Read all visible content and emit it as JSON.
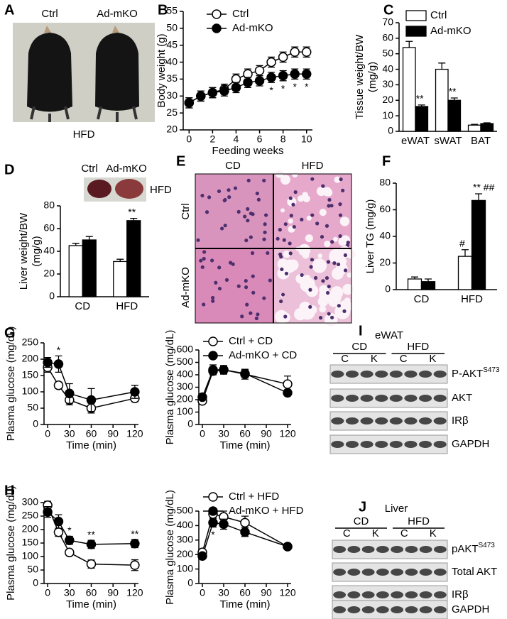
{
  "panels": {
    "A": {
      "label": "A",
      "ctrl": "Ctrl",
      "ko": "Ad-mKO",
      "diet": "HFD"
    },
    "D_inset": {
      "ctrl": "Ctrl",
      "ko": "Ad-mKO",
      "diet": "HFD"
    },
    "E": {
      "label": "E",
      "columns": [
        "CD",
        "HFD"
      ],
      "rows": [
        "Ctrl",
        "Ad-mKO"
      ]
    },
    "blots": [
      {
        "label": "I",
        "title": "eWAT",
        "groups": [
          "CD",
          "HFD"
        ],
        "lanes": [
          "C",
          "K",
          "C",
          "K"
        ],
        "rows": [
          {
            "text": "P-AKT",
            "sup": "S473"
          },
          {
            "text": "AKT"
          },
          {
            "text": "IRβ"
          },
          {
            "text": "GAPDH"
          }
        ]
      },
      {
        "label": "J",
        "title": "Liver",
        "groups": [
          "CD",
          "HFD"
        ],
        "lanes": [
          "C",
          "K",
          "C",
          "K"
        ],
        "rows": [
          {
            "text": "pAKT",
            "sup": "S473"
          },
          {
            "text": "Total AKT"
          },
          {
            "text": "IRβ"
          },
          {
            "text": "GAPDH"
          }
        ]
      }
    ]
  },
  "chart_data": [
    {
      "type": "line",
      "label": "B",
      "ylabel": "Body weight (g)",
      "xlabel": "Feeding weeks",
      "x": [
        0,
        1,
        2,
        3,
        4,
        5,
        6,
        7,
        8,
        9,
        10
      ],
      "xlim": [
        -0.5,
        10.5
      ],
      "xticks": [
        0,
        2,
        4,
        6,
        8,
        10
      ],
      "ylim": [
        20,
        55
      ],
      "yticks": [
        20,
        25,
        30,
        35,
        40,
        45,
        50,
        55
      ],
      "series": [
        {
          "name": "Ctrl",
          "color": "#ffffff",
          "values": [
            28,
            30,
            31,
            32,
            35,
            36.5,
            37.5,
            40,
            41.5,
            43,
            43
          ],
          "errors": [
            1.5,
            1.5,
            1.5,
            1.5,
            1.5,
            1.5,
            1.5,
            1.5,
            1.5,
            1.5,
            1.5
          ]
        },
        {
          "name": "Ad-mKO",
          "color": "#000000",
          "values": [
            28,
            30,
            31,
            31.5,
            32.5,
            34,
            34.5,
            35.5,
            36,
            36.5,
            36.5
          ],
          "errors": [
            1.5,
            1.5,
            1.5,
            1.5,
            1.5,
            1.5,
            1.5,
            1.5,
            1.5,
            1.5,
            1.5
          ],
          "annotations": [
            null,
            null,
            null,
            null,
            null,
            null,
            null,
            "*",
            "*",
            "*",
            "*"
          ]
        }
      ]
    },
    {
      "type": "bar",
      "label": "C",
      "ylabel": [
        "Tissue weight/BW",
        "(mg/g)"
      ],
      "categories": [
        "eWAT",
        "sWAT",
        "BAT"
      ],
      "ylim": [
        0,
        70
      ],
      "yticks": [
        0,
        10,
        20,
        30,
        40,
        50,
        60,
        70
      ],
      "series": [
        {
          "name": "Ctrl",
          "color": "#ffffff",
          "values": [
            54,
            40,
            4
          ],
          "errors": [
            4,
            4,
            0.5
          ]
        },
        {
          "name": "Ad-mKO",
          "color": "#000000",
          "values": [
            16,
            20,
            5
          ],
          "errors": [
            1,
            1.5,
            0.5
          ],
          "annotations": [
            "**",
            "**",
            null
          ]
        }
      ]
    },
    {
      "type": "bar",
      "label": "D",
      "ylabel": [
        "Liver weight/BW",
        "(mg/g)"
      ],
      "categories": [
        "CD",
        "HFD"
      ],
      "ylim": [
        0,
        80
      ],
      "yticks": [
        0,
        20,
        40,
        60,
        80
      ],
      "series": [
        {
          "color": "#ffffff",
          "values": [
            45,
            31
          ],
          "errors": [
            2,
            2
          ]
        },
        {
          "color": "#000000",
          "values": [
            50,
            67
          ],
          "errors": [
            3,
            2
          ],
          "annotations": [
            null,
            "**"
          ]
        }
      ]
    },
    {
      "type": "bar",
      "label": "F",
      "ylabel": "Liver TG (mg/g)",
      "categories": [
        "CD",
        "HFD"
      ],
      "ylim": [
        0,
        80
      ],
      "yticks": [
        0,
        20,
        40,
        60,
        80
      ],
      "series": [
        {
          "color": "#ffffff",
          "values": [
            8,
            25
          ],
          "errors": [
            1.5,
            5
          ],
          "annotations": [
            null,
            "#"
          ]
        },
        {
          "color": "#000000",
          "values": [
            6,
            67
          ],
          "errors": [
            2,
            5
          ],
          "annotations": [
            null,
            "** ##"
          ]
        }
      ]
    },
    {
      "type": "line",
      "label": "G",
      "ylabel": "Plasma glucose (mg/dL)",
      "xlabel": "Time (min)",
      "x": [
        0,
        15,
        30,
        60,
        120
      ],
      "xlim": [
        -5,
        125
      ],
      "xticks": [
        0,
        30,
        60,
        90,
        120
      ],
      "ylim": [
        0,
        250
      ],
      "yticks": [
        0,
        50,
        100,
        150,
        200,
        250
      ],
      "series": [
        {
          "color": "#ffffff",
          "values": [
            175,
            120,
            75,
            50,
            80
          ],
          "errors": [
            15,
            10,
            15,
            15,
            10
          ]
        },
        {
          "color": "#000000",
          "values": [
            190,
            185,
            95,
            75,
            100
          ],
          "errors": [
            15,
            25,
            30,
            35,
            20
          ],
          "annotations": [
            null,
            "*",
            null,
            null,
            null
          ]
        }
      ]
    },
    {
      "type": "line",
      "ylabel": "Plasma glucose (mg/dL)",
      "xlabel": "Time (min)",
      "x": [
        0,
        15,
        30,
        60,
        120
      ],
      "xlim": [
        -5,
        125
      ],
      "xticks": [
        0,
        30,
        60,
        90,
        120
      ],
      "ylim": [
        0,
        600
      ],
      "yticks": [
        0,
        100,
        200,
        300,
        400,
        500,
        600
      ],
      "series": [
        {
          "name": "Ctrl + CD",
          "color": "#ffffff",
          "values": [
            190,
            430,
            440,
            405,
            325
          ],
          "errors": [
            15,
            30,
            30,
            40,
            65
          ]
        },
        {
          "name": "Ad-mKO + CD",
          "color": "#000000",
          "values": [
            220,
            440,
            440,
            410,
            255
          ],
          "errors": [
            20,
            40,
            35,
            30,
            25
          ]
        }
      ]
    },
    {
      "type": "line",
      "label": "H",
      "ylabel": "Plasma glucose (mg/dL)",
      "xlabel": "Time (min)",
      "x": [
        0,
        15,
        30,
        60,
        120
      ],
      "xlim": [
        -5,
        125
      ],
      "xticks": [
        0,
        30,
        60,
        90,
        120
      ],
      "ylim": [
        0,
        300
      ],
      "yticks": [
        0,
        50,
        100,
        150,
        200,
        250,
        300
      ],
      "series": [
        {
          "color": "#ffffff",
          "values": [
            290,
            190,
            115,
            72,
            68
          ],
          "errors": [
            15,
            15,
            10,
            15,
            20
          ]
        },
        {
          "color": "#000000",
          "values": [
            265,
            230,
            160,
            145,
            148
          ],
          "errors": [
            20,
            25,
            15,
            15,
            15
          ],
          "annotations": [
            null,
            null,
            "*",
            "**",
            "**"
          ]
        }
      ]
    },
    {
      "type": "line",
      "ylabel": "Plasma glucose (mg/dL)",
      "xlabel": "Time (min)",
      "x": [
        0,
        15,
        30,
        60,
        120
      ],
      "xlim": [
        -5,
        125
      ],
      "xticks": [
        0,
        30,
        60,
        90,
        120
      ],
      "ylim": [
        0,
        500
      ],
      "yticks": [
        0,
        100,
        200,
        300,
        400,
        500
      ],
      "series": [
        {
          "name": "Ctrl + HFD",
          "color": "#ffffff",
          "values": [
            215,
            480,
            460,
            420,
            255
          ],
          "errors": [
            20,
            30,
            40,
            45,
            20
          ]
        },
        {
          "name": "Ad-mKO + HFD",
          "color": "#000000",
          "values": [
            190,
            420,
            410,
            355,
            255
          ],
          "errors": [
            20,
            30,
            35,
            30,
            20
          ],
          "annotations": [
            null,
            "*",
            null,
            null,
            null
          ]
        }
      ]
    }
  ]
}
